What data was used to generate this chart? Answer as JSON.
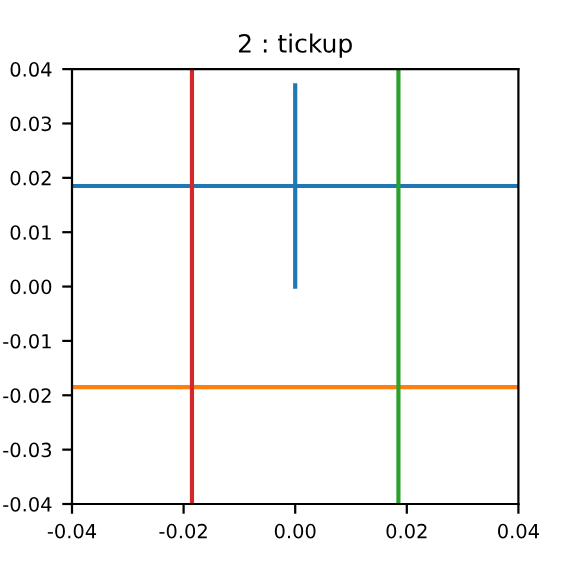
{
  "chart_data": {
    "type": "line",
    "title": "2 : tickup",
    "series": [
      {
        "color": "#1f77b4",
        "x": [
          0,
          0
        ],
        "values": [
          0,
          0.037
        ]
      }
    ],
    "ref_lines": [
      {
        "axis": "y",
        "value": 0.0185,
        "color": "#1f77b4"
      },
      {
        "axis": "y",
        "value": -0.0185,
        "color": "#ff7f0e"
      },
      {
        "axis": "x",
        "value": -0.0185,
        "color": "#d62728"
      },
      {
        "axis": "x",
        "value": 0.0185,
        "color": "#2ca02c"
      }
    ],
    "xlim": [
      -0.04,
      0.04
    ],
    "xticks": [
      -0.04,
      -0.02,
      {
        "value": 0,
        "label": "0.00"
      },
      0.02,
      0.04
    ],
    "ylim": [
      -0.04,
      0.04
    ],
    "yticks": [
      -0.04,
      -0.03,
      -0.02,
      -0.01,
      {
        "value": 0,
        "label": "0.00"
      },
      0.01,
      0.02,
      0.03,
      0.04
    ],
    "grid": false,
    "legend": false
  }
}
